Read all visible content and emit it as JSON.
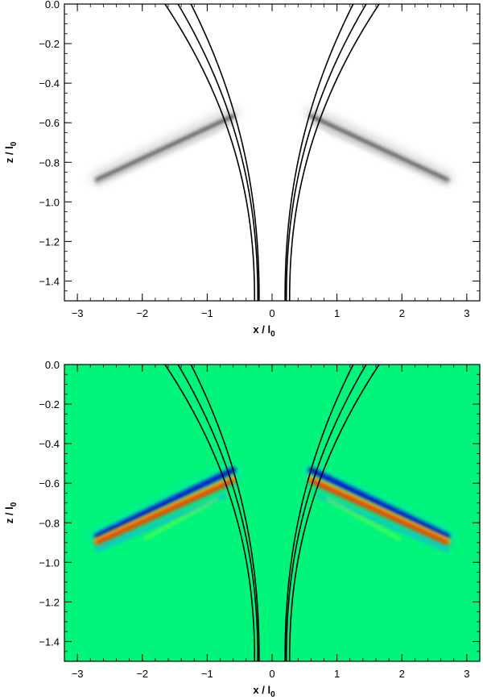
{
  "chart_data": [
    {
      "type": "heatmap",
      "colormap": "grayscale",
      "xlabel": "x",
      "xlabel_unit": "l",
      "xlabel_sub": "0",
      "ylabel": "z",
      "ylabel_unit": "l",
      "ylabel_sub": "0",
      "xlim": [
        -3.2,
        3.2
      ],
      "ylim": [
        -1.5,
        0.0
      ],
      "xticks": [
        -3,
        -2,
        -1,
        0,
        1,
        2,
        3
      ],
      "xtick_labels": [
        "−3",
        "−2",
        "−1",
        "0",
        "1",
        "2",
        "3"
      ],
      "yticks": [
        0.0,
        -0.2,
        -0.4,
        -0.6,
        -0.8,
        -1.0,
        -1.2,
        -1.4
      ],
      "ytick_labels": [
        "0.0",
        "−0.2",
        "−0.4",
        "−0.6",
        "−0.8",
        "−1.0",
        "−1.2",
        "−1.4"
      ],
      "field_lines": [
        {
          "x_top": 1.25,
          "x_bottom": 0.2
        },
        {
          "x_top": 1.45,
          "x_bottom": 0.22
        },
        {
          "x_top": 1.65,
          "x_bottom": 0.27
        }
      ],
      "wave_band": {
        "x_inner": 0.6,
        "z_inner": -0.55,
        "x_outer": 2.7,
        "z_outer": -0.88
      }
    },
    {
      "type": "heatmap",
      "colormap": "rainbow",
      "background_color": "#00f57a",
      "xlabel": "x",
      "xlabel_unit": "l",
      "xlabel_sub": "0",
      "ylabel": "z",
      "ylabel_unit": "l",
      "ylabel_sub": "0",
      "xlim": [
        -3.2,
        3.2
      ],
      "ylim": [
        -1.5,
        0.0
      ],
      "xticks": [
        -3,
        -2,
        -1,
        0,
        1,
        2,
        3
      ],
      "xtick_labels": [
        "−3",
        "−2",
        "−1",
        "0",
        "1",
        "2",
        "3"
      ],
      "yticks": [
        0.0,
        -0.2,
        -0.4,
        -0.6,
        -0.8,
        -1.0,
        -1.2,
        -1.4
      ],
      "ytick_labels": [
        "0.0",
        "−0.2",
        "−0.4",
        "−0.6",
        "−0.8",
        "−1.0",
        "−1.2",
        "−1.4"
      ],
      "field_lines": [
        {
          "x_top": 1.25,
          "x_bottom": 0.2
        },
        {
          "x_top": 1.45,
          "x_bottom": 0.22
        },
        {
          "x_top": 1.65,
          "x_bottom": 0.27
        }
      ],
      "wave_band": {
        "x_inner": 0.6,
        "z_inner": -0.55,
        "x_outer": 2.7,
        "z_outer": -0.88
      }
    }
  ]
}
